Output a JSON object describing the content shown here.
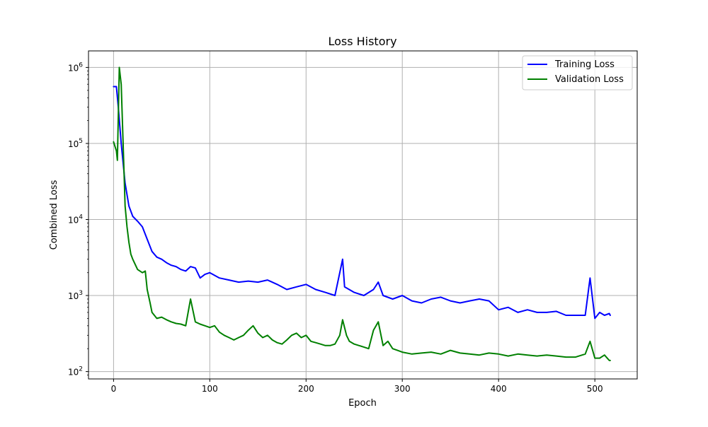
{
  "chart_data": {
    "type": "line",
    "title": "Loss History",
    "xlabel": "Epoch",
    "ylabel": "Combined Loss",
    "xlim": [
      -26,
      544
    ],
    "ylim": [
      80,
      1650000
    ],
    "yscale": "log",
    "grid": true,
    "legend": "top-right",
    "x_ticks": [
      0,
      100,
      200,
      300,
      400,
      500
    ],
    "y_ticks": [
      {
        "value": 100,
        "base": "10",
        "exp": "2"
      },
      {
        "value": 1000,
        "base": "10",
        "exp": "3"
      },
      {
        "value": 10000,
        "base": "10",
        "exp": "4"
      },
      {
        "value": 100000,
        "base": "10",
        "exp": "5"
      },
      {
        "value": 1000000,
        "base": "10",
        "exp": "6"
      }
    ],
    "series": [
      {
        "name": "Training Loss",
        "color": "#0000ff",
        "x": [
          0,
          3,
          5,
          8,
          12,
          16,
          20,
          25,
          30,
          35,
          40,
          45,
          50,
          55,
          60,
          65,
          70,
          75,
          80,
          85,
          90,
          95,
          100,
          110,
          120,
          130,
          140,
          150,
          160,
          170,
          180,
          190,
          200,
          210,
          220,
          230,
          238,
          240,
          250,
          260,
          270,
          275,
          280,
          290,
          300,
          310,
          320,
          330,
          340,
          350,
          360,
          370,
          380,
          390,
          400,
          410,
          420,
          430,
          440,
          450,
          460,
          470,
          480,
          490,
          495,
          500,
          505,
          510,
          515,
          516
        ],
        "y": [
          560000,
          560000,
          300000,
          100000,
          30000,
          15000,
          11000,
          9500,
          8000,
          5500,
          3800,
          3200,
          3000,
          2700,
          2500,
          2400,
          2200,
          2100,
          2400,
          2300,
          1700,
          1900,
          2000,
          1700,
          1600,
          1500,
          1550,
          1500,
          1600,
          1400,
          1200,
          1300,
          1400,
          1200,
          1100,
          1000,
          3000,
          1300,
          1100,
          1000,
          1200,
          1500,
          1000,
          900,
          1000,
          850,
          800,
          900,
          950,
          850,
          800,
          850,
          900,
          850,
          650,
          700,
          600,
          650,
          600,
          600,
          620,
          550,
          550,
          550,
          1700,
          500,
          600,
          550,
          580,
          550
        ]
      },
      {
        "name": "Validation Loss",
        "color": "#008000",
        "x": [
          0,
          3,
          4,
          6,
          8,
          10,
          12,
          14,
          16,
          18,
          20,
          25,
          30,
          33,
          35,
          38,
          40,
          45,
          50,
          55,
          60,
          65,
          70,
          75,
          80,
          85,
          90,
          95,
          100,
          105,
          110,
          115,
          120,
          125,
          130,
          135,
          140,
          145,
          150,
          155,
          160,
          165,
          170,
          175,
          180,
          185,
          190,
          195,
          200,
          205,
          210,
          215,
          220,
          225,
          230,
          235,
          238,
          242,
          245,
          250,
          255,
          260,
          265,
          270,
          275,
          280,
          285,
          290,
          295,
          300,
          310,
          320,
          330,
          340,
          350,
          360,
          370,
          380,
          390,
          400,
          410,
          420,
          430,
          440,
          450,
          460,
          470,
          480,
          490,
          495,
          500,
          505,
          510,
          515,
          516
        ],
        "y": [
          105000,
          80000,
          60000,
          1000000,
          600000,
          100000,
          15000,
          8000,
          5000,
          3500,
          3000,
          2200,
          2000,
          2100,
          1200,
          800,
          600,
          500,
          520,
          480,
          450,
          430,
          420,
          400,
          900,
          450,
          420,
          400,
          380,
          400,
          330,
          300,
          280,
          260,
          280,
          300,
          350,
          400,
          320,
          280,
          300,
          260,
          240,
          230,
          260,
          300,
          320,
          280,
          300,
          250,
          240,
          230,
          220,
          220,
          230,
          300,
          480,
          300,
          250,
          230,
          220,
          210,
          200,
          350,
          450,
          220,
          250,
          200,
          190,
          180,
          170,
          175,
          180,
          170,
          190,
          175,
          170,
          165,
          175,
          170,
          160,
          170,
          165,
          160,
          165,
          160,
          155,
          155,
          170,
          250,
          150,
          150,
          165,
          140,
          140
        ]
      }
    ]
  }
}
